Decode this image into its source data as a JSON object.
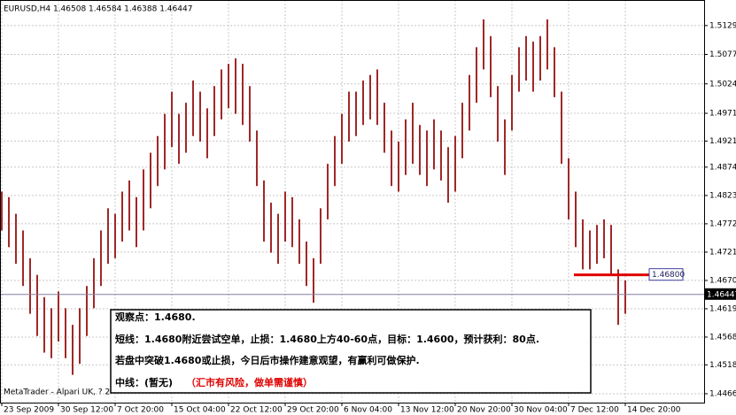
{
  "chart_data": {
    "type": "ohlc",
    "title": "EURUSD,H4  1.46508 1.46584 1.46388 1.46447",
    "footer": "MetaTrader - Alpari UK, ? 2",
    "color": "#a02828",
    "grid": true,
    "x": [
      0,
      1,
      2,
      3,
      4,
      5,
      6,
      7,
      8,
      9,
      10,
      11,
      12,
      13,
      14,
      15,
      16,
      17,
      18,
      19,
      20,
      21,
      22,
      23,
      24,
      25,
      26,
      27,
      28,
      29,
      30,
      31,
      32,
      33,
      34,
      35,
      36,
      37,
      38,
      39,
      40,
      41,
      42,
      43,
      44,
      45,
      46,
      47,
      48,
      49,
      50,
      51,
      52,
      53,
      54,
      55,
      56,
      57,
      58,
      59,
      60,
      61,
      62,
      63,
      64,
      65,
      66,
      67,
      68,
      69,
      70,
      71,
      72,
      73,
      74,
      75,
      76,
      77,
      78,
      79,
      80,
      81,
      82,
      83,
      84,
      85,
      86,
      87,
      88
    ],
    "low": [
      1.476,
      1.473,
      1.47,
      1.466,
      1.461,
      1.457,
      1.454,
      1.453,
      1.456,
      1.453,
      1.45,
      1.452,
      1.457,
      1.462,
      1.466,
      1.47,
      1.471,
      1.474,
      1.476,
      1.473,
      1.476,
      1.48,
      1.484,
      1.487,
      1.491,
      1.488,
      1.49,
      1.493,
      1.492,
      1.489,
      1.493,
      1.496,
      1.498,
      1.497,
      1.495,
      1.492,
      1.484,
      1.474,
      1.472,
      1.47,
      1.474,
      1.473,
      1.47,
      1.466,
      1.463,
      1.47,
      1.478,
      1.484,
      1.488,
      1.492,
      1.493,
      1.495,
      1.496,
      1.495,
      1.49,
      1.484,
      1.483,
      1.486,
      1.488,
      1.486,
      1.484,
      1.487,
      1.485,
      1.481,
      1.483,
      1.489,
      1.494,
      1.499,
      1.505,
      1.5,
      1.492,
      1.486,
      1.494,
      1.501,
      1.503,
      1.501,
      1.503,
      1.505,
      1.5,
      1.488,
      1.478,
      1.473,
      1.469,
      1.469,
      1.47,
      1.471,
      1.468,
      1.459,
      1.461
    ],
    "high": [
      1.483,
      1.482,
      1.479,
      1.476,
      1.471,
      1.468,
      1.464,
      1.462,
      1.465,
      1.462,
      1.459,
      1.462,
      1.466,
      1.471,
      1.476,
      1.48,
      1.479,
      1.483,
      1.485,
      1.482,
      1.487,
      1.49,
      1.493,
      1.497,
      1.501,
      1.497,
      1.499,
      1.503,
      1.501,
      1.498,
      1.502,
      1.505,
      1.506,
      1.507,
      1.506,
      1.502,
      1.494,
      1.485,
      1.481,
      1.479,
      1.483,
      1.482,
      1.478,
      1.474,
      1.471,
      1.48,
      1.488,
      1.493,
      1.497,
      1.501,
      1.501,
      1.503,
      1.504,
      1.505,
      1.499,
      1.494,
      1.492,
      1.496,
      1.499,
      1.495,
      1.494,
      1.496,
      1.494,
      1.491,
      1.493,
      1.499,
      1.504,
      1.509,
      1.514,
      1.511,
      1.502,
      1.496,
      1.504,
      1.509,
      1.511,
      1.51,
      1.511,
      1.514,
      1.509,
      1.501,
      1.489,
      1.483,
      1.478,
      1.476,
      1.477,
      1.478,
      1.477,
      1.469,
      1.467
    ],
    "xlim": [
      -0.25,
      99.125
    ],
    "xticks": [
      {
        "value": 0,
        "label": "23 Sep 2009"
      },
      {
        "value": 8,
        "label": "30 Sep 12:00"
      },
      {
        "value": 16,
        "label": "7 Oct 20:00"
      },
      {
        "value": 24,
        "label": "15 Oct 04:00"
      },
      {
        "value": 32,
        "label": "22 Oct 12:00"
      },
      {
        "value": 40,
        "label": "29 Oct 20:00"
      },
      {
        "value": 48,
        "label": "6 Nov 04:00"
      },
      {
        "value": 56,
        "label": "13 Nov 12:00"
      },
      {
        "value": 64,
        "label": "20 Nov 20:00"
      },
      {
        "value": 72,
        "label": "30 Nov 04:00"
      },
      {
        "value": 80,
        "label": "7 Dec 12:00"
      },
      {
        "value": 88,
        "label": "14 Dec 20:00"
      }
    ],
    "ylim": [
      1.445,
      1.5175
    ],
    "yticks": [
      {
        "value": 1.5129,
        "label": "1.51290"
      },
      {
        "value": 1.5077,
        "label": "1.50770"
      },
      {
        "value": 1.5024,
        "label": "1.50240"
      },
      {
        "value": 1.4971,
        "label": "1.49710"
      },
      {
        "value": 1.4921,
        "label": "1.49210"
      },
      {
        "value": 1.4874,
        "label": "1.48740"
      },
      {
        "value": 1.4823,
        "label": "1.48230"
      },
      {
        "value": 1.4772,
        "label": "1.47720"
      },
      {
        "value": 1.4721,
        "label": "1.47210"
      },
      {
        "value": 1.467,
        "label": "1.46700"
      },
      {
        "value": 1.4619,
        "label": "1.46190"
      },
      {
        "value": 1.4568,
        "label": "1.45680"
      },
      {
        "value": 1.4518,
        "label": "1.45180"
      },
      {
        "value": 1.4466,
        "label": "1.44660"
      }
    ],
    "level": {
      "value": 1.468,
      "label": "1.46800",
      "color": "#e00000"
    },
    "last_price": {
      "value": 1.46447,
      "label": "1.46447"
    },
    "note": {
      "line1": "观察点：1.4680.",
      "line2": "短线：1.4680附近尝试空单，止损：1.4680上方40-60点，目标：1.4600，预计获利：80点.",
      "line3": "若盘中突破1.4680或止损，今日后市操作建意观望，有赢利可做保护.",
      "line4a": "中线：(暂无)",
      "line4b": "（汇市有风险，做单需谨慎）"
    }
  }
}
